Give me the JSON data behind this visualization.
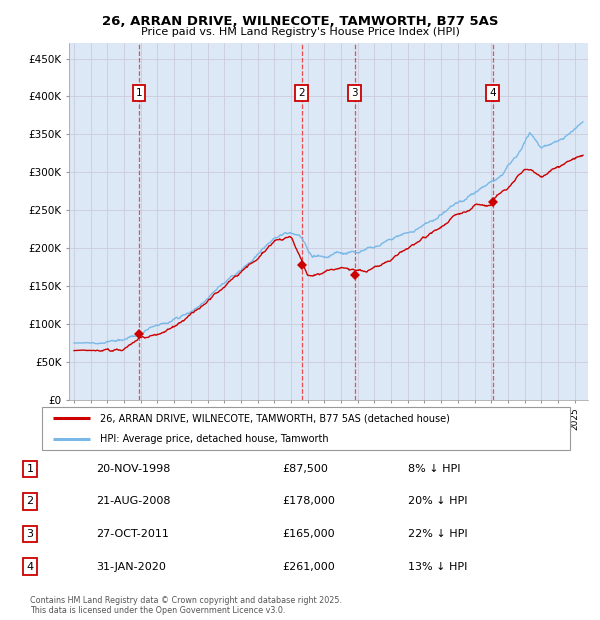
{
  "title": "26, ARRAN DRIVE, WILNECOTE, TAMWORTH, B77 5AS",
  "subtitle": "Price paid vs. HM Land Registry's House Price Index (HPI)",
  "ylim": [
    0,
    470000
  ],
  "yticks": [
    0,
    50000,
    100000,
    150000,
    200000,
    250000,
    300000,
    350000,
    400000,
    450000
  ],
  "ytick_labels": [
    "£0",
    "£50K",
    "£100K",
    "£150K",
    "£200K",
    "£250K",
    "£300K",
    "£350K",
    "£400K",
    "£450K"
  ],
  "xlim_start": 1994.7,
  "xlim_end": 2025.8,
  "hpi_color": "#7ab8e8",
  "price_color": "#cc0000",
  "vline_color": "#ee3333",
  "grid_color": "#ccccdd",
  "bg_color": "#dce8f5",
  "transactions": [
    {
      "num": 1,
      "date": "20-NOV-1998",
      "year": 1998.89,
      "price": 87500,
      "pct": "8%",
      "dir": "↓"
    },
    {
      "num": 2,
      "date": "21-AUG-2008",
      "year": 2008.64,
      "price": 178000,
      "pct": "20%",
      "dir": "↓"
    },
    {
      "num": 3,
      "date": "27-OCT-2011",
      "year": 2011.82,
      "price": 165000,
      "pct": "22%",
      "dir": "↓"
    },
    {
      "num": 4,
      "date": "31-JAN-2020",
      "year": 2020.08,
      "price": 261000,
      "pct": "13%",
      "dir": "↓"
    }
  ],
  "legend_line1": "26, ARRAN DRIVE, WILNECOTE, TAMWORTH, B77 5AS (detached house)",
  "legend_line2": "HPI: Average price, detached house, Tamworth",
  "footer": "Contains HM Land Registry data © Crown copyright and database right 2025.\nThis data is licensed under the Open Government Licence v3.0."
}
